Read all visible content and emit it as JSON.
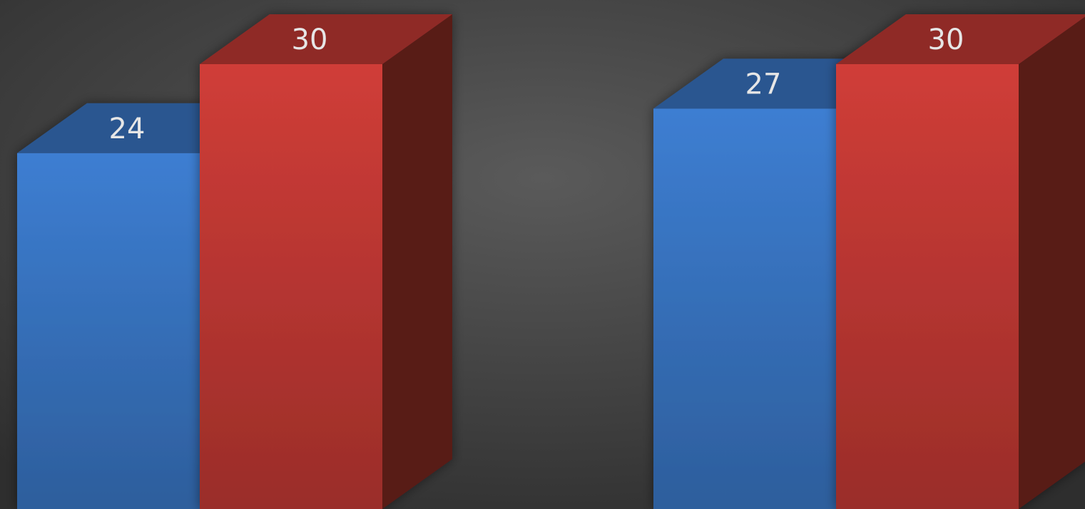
{
  "chart_data": {
    "type": "bar",
    "style": "3d-clustered-column",
    "categories": [
      "",
      ""
    ],
    "series": [
      {
        "color": "#3a78c8",
        "values": [
          24,
          27
        ]
      },
      {
        "color": "#c63a35",
        "values": [
          30,
          30
        ]
      }
    ],
    "data_labels": [
      [
        "24",
        "27"
      ],
      [
        "30",
        "30"
      ]
    ],
    "grid": false,
    "legend": "none"
  }
}
